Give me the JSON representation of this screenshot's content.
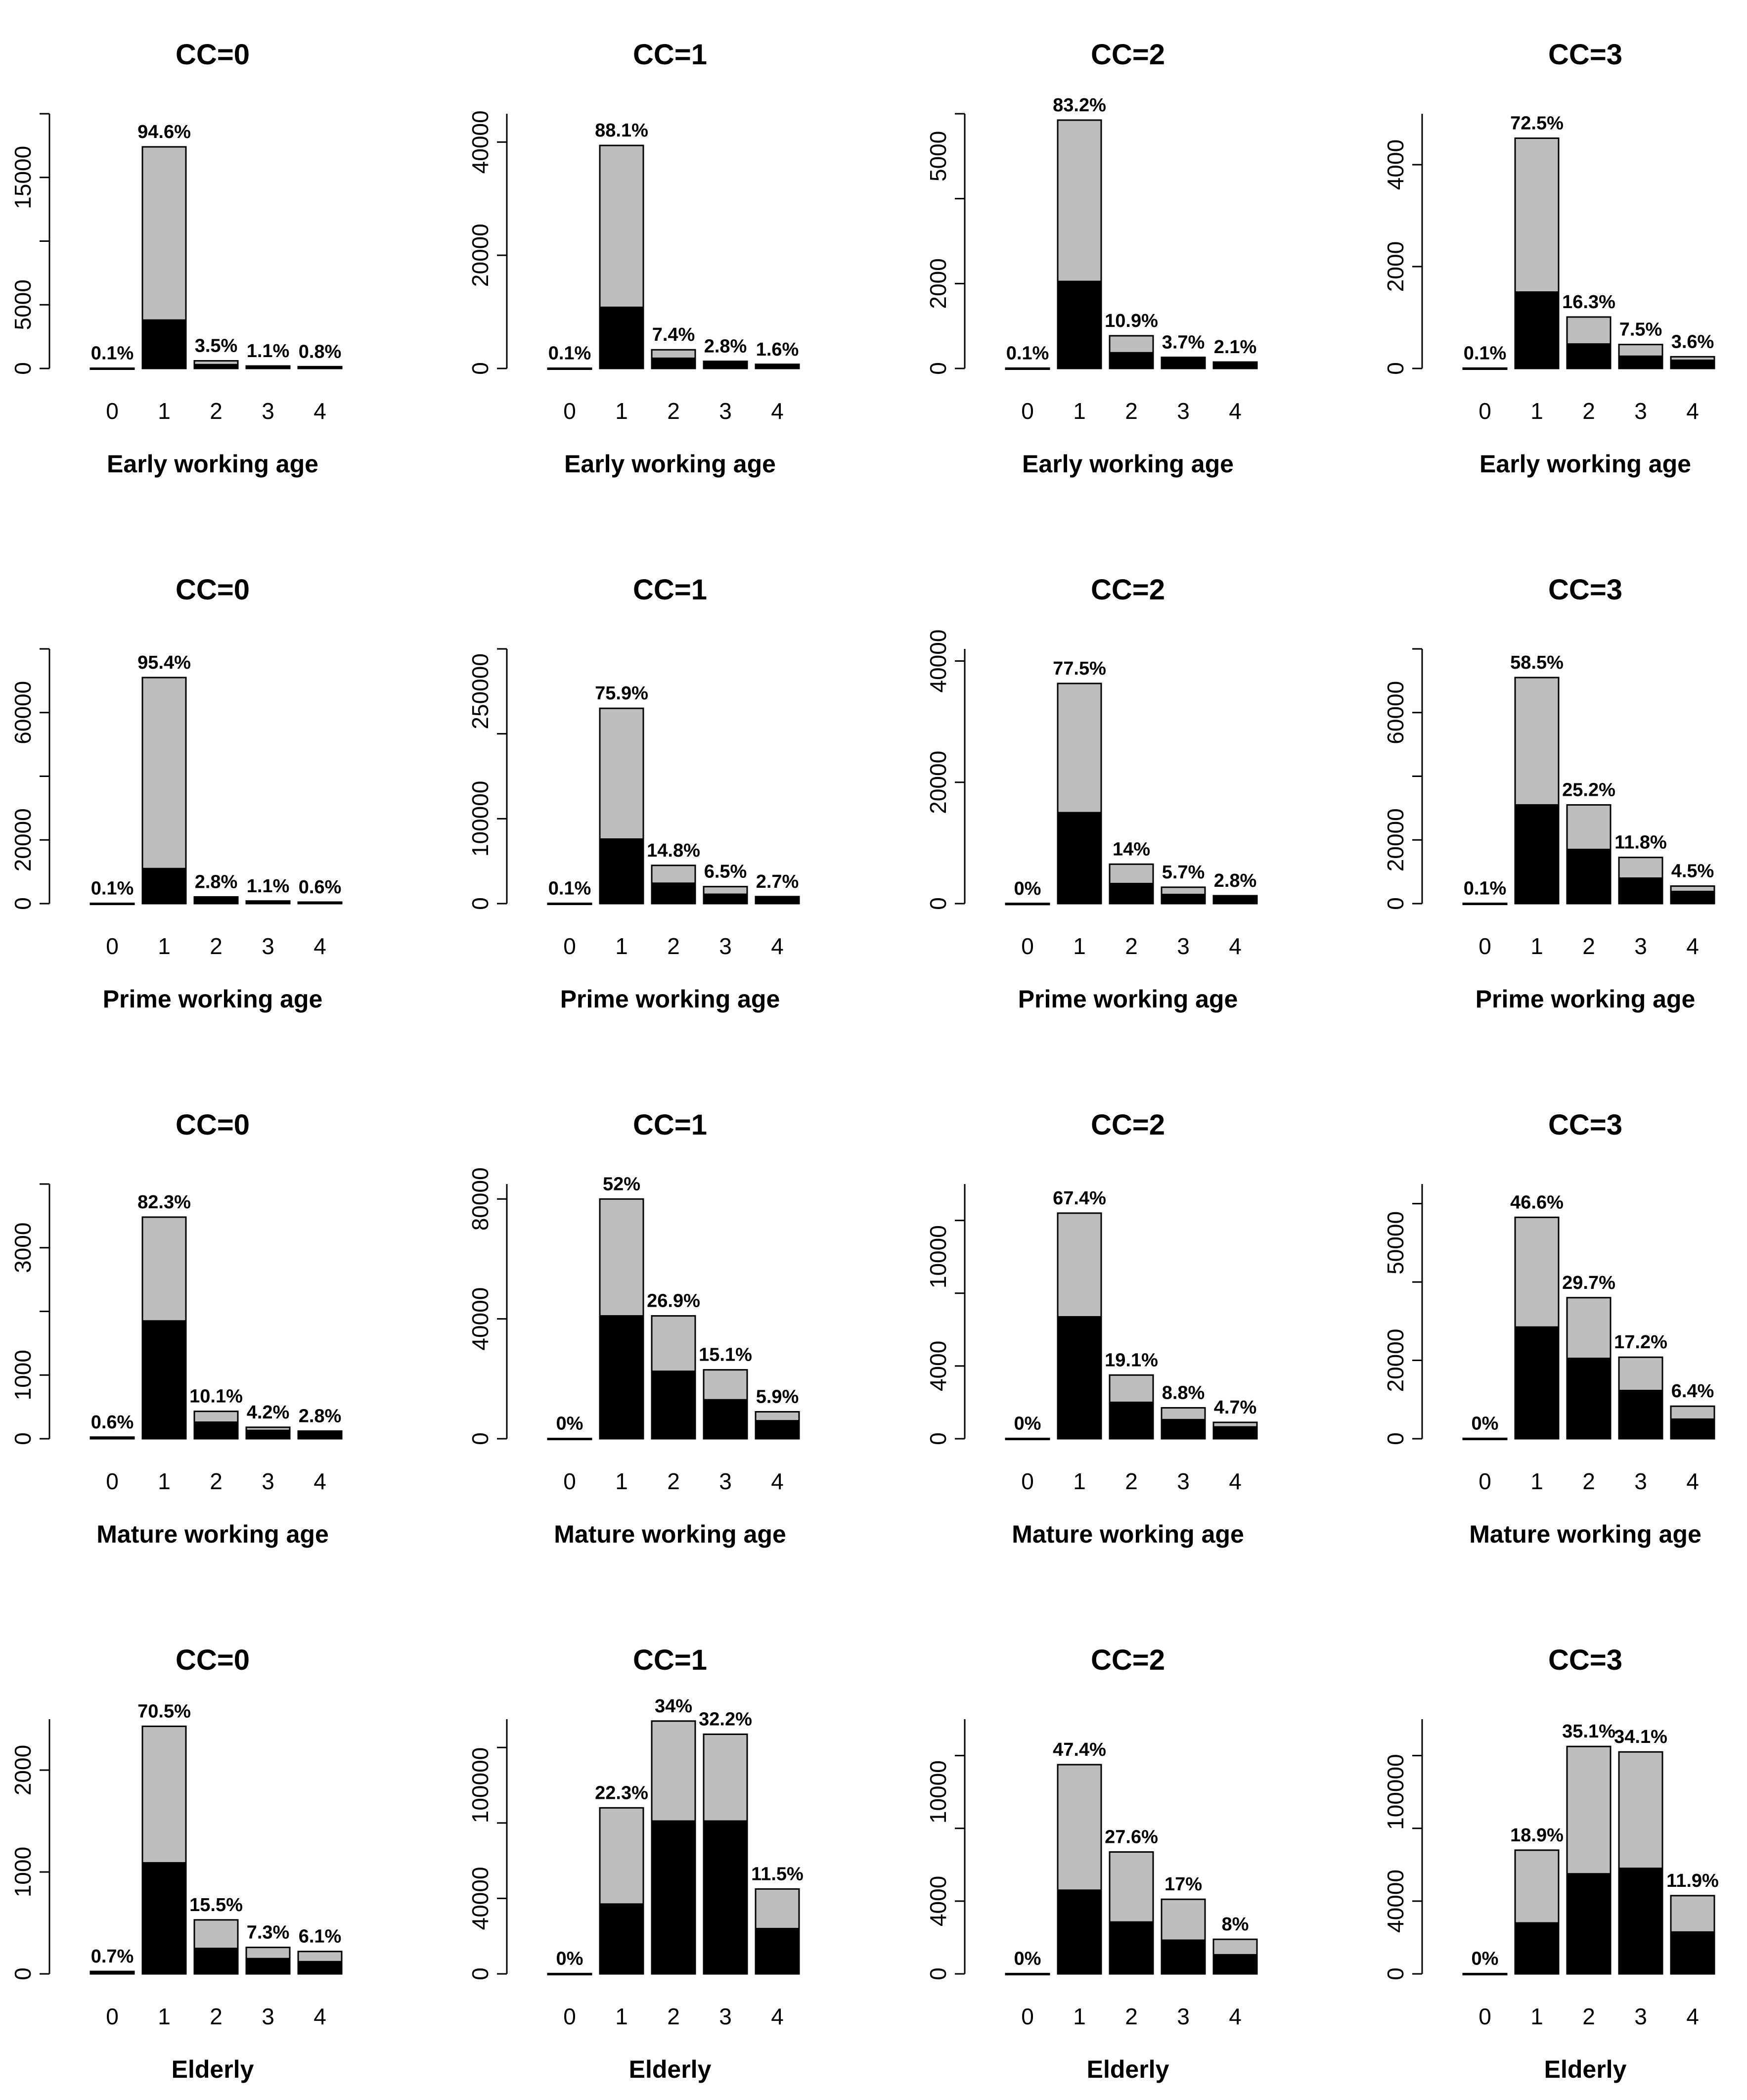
{
  "colors": {
    "total_bar": "#bebebe",
    "part_bar": "#000000",
    "bar_border": "#000000"
  },
  "chart_data": [
    {
      "type": "bar",
      "title": "CC=0",
      "xlabel": "Early working age",
      "categories": [
        "0",
        "1",
        "2",
        "3",
        "4"
      ],
      "yticks": [
        "0",
        "5000",
        "15000"
      ],
      "ytick_values": [
        0,
        5000,
        15000
      ],
      "ylim": [
        0,
        20000
      ],
      "series": [
        {
          "values": [
            20,
            17400,
            600,
            190,
            140
          ]
        },
        {
          "values": [
            20,
            3800,
            300,
            190,
            140
          ]
        }
      ],
      "labels": [
        "0.1%",
        "94.6%",
        "3.5%",
        "1.1%",
        "0.8%"
      ]
    },
    {
      "type": "bar",
      "title": "CC=1",
      "xlabel": "Early working age",
      "categories": [
        "0",
        "1",
        "2",
        "3",
        "4"
      ],
      "yticks": [
        "0",
        "20000",
        "40000"
      ],
      "ytick_values": [
        0,
        20000,
        40000
      ],
      "ylim": [
        0,
        45000
      ],
      "series": [
        {
          "values": [
            45,
            39400,
            3300,
            1250,
            720
          ]
        },
        {
          "values": [
            45,
            10800,
            1800,
            1250,
            720
          ]
        }
      ],
      "labels": [
        "0.1%",
        "88.1%",
        "7.4%",
        "2.8%",
        "1.6%"
      ]
    },
    {
      "type": "bar",
      "title": "CC=2",
      "xlabel": "Early working age",
      "categories": [
        "0",
        "1",
        "2",
        "3",
        "4"
      ],
      "yticks": [
        "0",
        "2000",
        "5000"
      ],
      "ytick_values": [
        0,
        2000,
        5000
      ],
      "ylim": [
        0,
        6000
      ],
      "series": [
        {
          "values": [
            7,
            5850,
            770,
            260,
            150
          ]
        },
        {
          "values": [
            7,
            2050,
            370,
            260,
            150
          ]
        }
      ],
      "labels": [
        "0.1%",
        "83.2%",
        "10.9%",
        "3.7%",
        "2.1%"
      ]
    },
    {
      "type": "bar",
      "title": "CC=3",
      "xlabel": "Early working age",
      "categories": [
        "0",
        "1",
        "2",
        "3",
        "4"
      ],
      "yticks": [
        "0",
        "2000",
        "4000"
      ],
      "ytick_values": [
        0,
        2000,
        4000
      ],
      "ylim": [
        0,
        5000
      ],
      "series": [
        {
          "values": [
            6,
            4520,
            1010,
            470,
            230
          ]
        },
        {
          "values": [
            6,
            1500,
            480,
            240,
            160
          ]
        }
      ],
      "labels": [
        "0.1%",
        "72.5%",
        "16.3%",
        "7.5%",
        "3.6%"
      ]
    },
    {
      "type": "bar",
      "title": "CC=0",
      "xlabel": "Prime working age",
      "categories": [
        "0",
        "1",
        "2",
        "3",
        "4"
      ],
      "yticks": [
        "0",
        "20000",
        "60000"
      ],
      "ytick_values": [
        0,
        20000,
        60000
      ],
      "ylim": [
        0,
        80000
      ],
      "series": [
        {
          "values": [
            70,
            71000,
            2100,
            800,
            450
          ]
        },
        {
          "values": [
            70,
            11000,
            2100,
            800,
            450
          ]
        }
      ],
      "labels": [
        "0.1%",
        "95.4%",
        "2.8%",
        "1.1%",
        "0.6%"
      ]
    },
    {
      "type": "bar",
      "title": "CC=1",
      "xlabel": "Prime working age",
      "categories": [
        "0",
        "1",
        "2",
        "3",
        "4"
      ],
      "yticks": [
        "0",
        "100000",
        "250000"
      ],
      "ytick_values": [
        0,
        100000,
        250000
      ],
      "ylim": [
        0,
        300000
      ],
      "series": [
        {
          "values": [
            300,
            230000,
            45000,
            20000,
            8200
          ]
        },
        {
          "values": [
            300,
            76000,
            24000,
            11000,
            8200
          ]
        }
      ],
      "labels": [
        "0.1%",
        "75.9%",
        "14.8%",
        "6.5%",
        "2.7%"
      ]
    },
    {
      "type": "bar",
      "title": "CC=2",
      "xlabel": "Prime working age",
      "categories": [
        "0",
        "1",
        "2",
        "3",
        "4"
      ],
      "yticks": [
        "0",
        "20000",
        "40000"
      ],
      "ytick_values": [
        0,
        20000,
        40000
      ],
      "ylim": [
        0,
        42000
      ],
      "series": [
        {
          "values": [
            20,
            36300,
            6500,
            2700,
            1300
          ]
        },
        {
          "values": [
            20,
            15000,
            3300,
            1500,
            1300
          ]
        }
      ],
      "labels": [
        "0%",
        "77.5%",
        "14%",
        "5.7%",
        "2.8%"
      ]
    },
    {
      "type": "bar",
      "title": "CC=3",
      "xlabel": "Prime working age",
      "categories": [
        "0",
        "1",
        "2",
        "3",
        "4"
      ],
      "yticks": [
        "0",
        "20000",
        "60000"
      ],
      "ytick_values": [
        0,
        20000,
        60000
      ],
      "ylim": [
        0,
        80000
      ],
      "series": [
        {
          "values": [
            70,
            71000,
            31000,
            14500,
            5500
          ]
        },
        {
          "values": [
            70,
            31000,
            17000,
            8000,
            3800
          ]
        }
      ],
      "labels": [
        "0.1%",
        "58.5%",
        "25.2%",
        "11.8%",
        "4.5%"
      ]
    },
    {
      "type": "bar",
      "title": "CC=0",
      "xlabel": "Mature working age",
      "categories": [
        "0",
        "1",
        "2",
        "3",
        "4"
      ],
      "yticks": [
        "0",
        "1000",
        "3000"
      ],
      "ytick_values": [
        0,
        1000,
        3000
      ],
      "ylim": [
        0,
        4000
      ],
      "series": [
        {
          "values": [
            25,
            3480,
            430,
            180,
            120
          ]
        },
        {
          "values": [
            25,
            1850,
            260,
            130,
            120
          ]
        }
      ],
      "labels": [
        "0.6%",
        "82.3%",
        "10.1%",
        "4.2%",
        "2.8%"
      ]
    },
    {
      "type": "bar",
      "title": "CC=1",
      "xlabel": "Mature working age",
      "categories": [
        "0",
        "1",
        "2",
        "3",
        "4"
      ],
      "yticks": [
        "0",
        "40000",
        "80000"
      ],
      "ytick_values": [
        0,
        40000,
        80000
      ],
      "ylim": [
        0,
        85000
      ],
      "series": [
        {
          "values": [
            80,
            80000,
            41000,
            23000,
            9000
          ]
        },
        {
          "values": [
            80,
            41000,
            22500,
            13000,
            6000
          ]
        }
      ],
      "labels": [
        "0%",
        "52%",
        "26.9%",
        "15.1%",
        "5.9%"
      ]
    },
    {
      "type": "bar",
      "title": "CC=2",
      "xlabel": "Mature working age",
      "categories": [
        "0",
        "1",
        "2",
        "3",
        "4"
      ],
      "yticks": [
        "0",
        "4000",
        "10000"
      ],
      "ytick_values": [
        0,
        4000,
        10000
      ],
      "ylim": [
        0,
        14000
      ],
      "series": [
        {
          "values": [
            15,
            12400,
            3500,
            1700,
            900
          ]
        },
        {
          "values": [
            15,
            6700,
            2000,
            1050,
            650
          ]
        }
      ],
      "labels": [
        "0%",
        "67.4%",
        "19.1%",
        "8.8%",
        "4.7%"
      ]
    },
    {
      "type": "bar",
      "title": "CC=3",
      "xlabel": "Mature working age",
      "categories": [
        "0",
        "1",
        "2",
        "3",
        "4"
      ],
      "yticks": [
        "0",
        "20000",
        "50000"
      ],
      "ytick_values": [
        0,
        20000,
        50000
      ],
      "ylim": [
        0,
        65000
      ],
      "series": [
        {
          "values": [
            80,
            56500,
            36000,
            20800,
            8300
          ]
        },
        {
          "values": [
            80,
            28500,
            20500,
            12300,
            5000
          ]
        }
      ],
      "labels": [
        "0%",
        "46.6%",
        "29.7%",
        "17.2%",
        "6.4%"
      ]
    },
    {
      "type": "bar",
      "title": "CC=0",
      "xlabel": "Elderly",
      "categories": [
        "0",
        "1",
        "2",
        "3",
        "4"
      ],
      "yticks": [
        "0",
        "1000",
        "2000"
      ],
      "ytick_values": [
        0,
        1000,
        2000
      ],
      "ylim": [
        0,
        2500
      ],
      "series": [
        {
          "values": [
            24,
            2430,
            530,
            260,
            220
          ]
        },
        {
          "values": [
            24,
            1090,
            250,
            150,
            120
          ]
        }
      ],
      "labels": [
        "0.7%",
        "70.5%",
        "15.5%",
        "7.3%",
        "6.1%"
      ]
    },
    {
      "type": "bar",
      "title": "CC=1",
      "xlabel": "Elderly",
      "categories": [
        "0",
        "1",
        "2",
        "3",
        "4"
      ],
      "yticks": [
        "0",
        "40000",
        "100000"
      ],
      "ytick_values": [
        0,
        40000,
        100000
      ],
      "ylim": [
        0,
        135000
      ],
      "series": [
        {
          "values": [
            150,
            88000,
            134000,
            127000,
            45000
          ]
        },
        {
          "values": [
            150,
            37000,
            81000,
            81000,
            24000
          ]
        }
      ],
      "labels": [
        "0%",
        "22.3%",
        "34%",
        "32.2%",
        "11.5%"
      ]
    },
    {
      "type": "bar",
      "title": "CC=2",
      "xlabel": "Elderly",
      "categories": [
        "0",
        "1",
        "2",
        "3",
        "4"
      ],
      "yticks": [
        "0",
        "4000",
        "10000"
      ],
      "ytick_values": [
        0,
        4000,
        10000
      ],
      "ylim": [
        0,
        14000
      ],
      "series": [
        {
          "values": [
            15,
            11500,
            6700,
            4100,
            1900
          ]
        },
        {
          "values": [
            15,
            4600,
            2850,
            1850,
            1050
          ]
        }
      ],
      "labels": [
        "0%",
        "47.4%",
        "27.6%",
        "17%",
        "8%"
      ]
    },
    {
      "type": "bar",
      "title": "CC=3",
      "xlabel": "Elderly",
      "categories": [
        "0",
        "1",
        "2",
        "3",
        "4"
      ],
      "yticks": [
        "0",
        "40000",
        "100000"
      ],
      "ytick_values": [
        0,
        40000,
        100000
      ],
      "ylim": [
        0,
        140000
      ],
      "series": [
        {
          "values": [
            150,
            68000,
            125000,
            122000,
            43000
          ]
        },
        {
          "values": [
            150,
            28000,
            55000,
            58000,
            23000
          ]
        }
      ],
      "labels": [
        "0%",
        "18.9%",
        "35.1%",
        "34.1%",
        "11.9%"
      ]
    }
  ]
}
